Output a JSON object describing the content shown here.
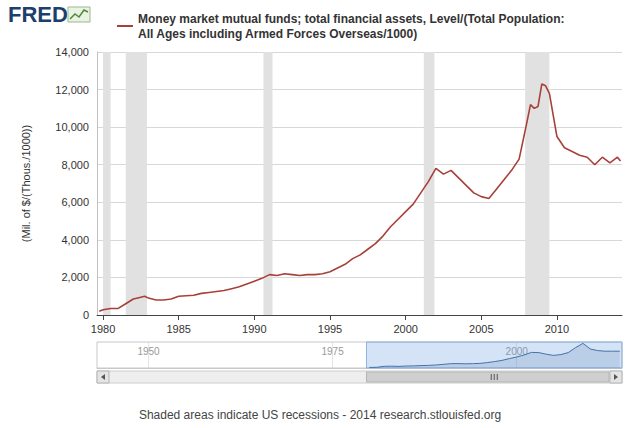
{
  "logo": "FRED",
  "note": "Shaded areas indicate US recessions - 2014 research.stlouisfed.org",
  "chart_data": [
    {
      "type": "line",
      "ylabel": "(Mil. of $/(Thous./1000))",
      "x": [
        1979.75,
        1980,
        1980.5,
        1981,
        1981.5,
        1982,
        1982.5,
        1982.75,
        1983,
        1983.5,
        1984,
        1984.5,
        1985,
        1986,
        1986.5,
        1987,
        1987.5,
        1988,
        1988.5,
        1989,
        1989.5,
        1990,
        1990.5,
        1991,
        1991.5,
        1992,
        1992.5,
        1993,
        1993.5,
        1994,
        1994.5,
        1995,
        1995.5,
        1996,
        1996.5,
        1997,
        1997.5,
        1998,
        1998.5,
        1999,
        1999.5,
        2000,
        2000.5,
        2001,
        2001.5,
        2002,
        2002.5,
        2003,
        2003.5,
        2004,
        2004.5,
        2005,
        2005.5,
        2006,
        2006.5,
        2007,
        2007.5,
        2008,
        2008.25,
        2008.5,
        2008.75,
        2009,
        2009.25,
        2009.5,
        2010,
        2010.5,
        2011,
        2011.5,
        2012,
        2012.5,
        2013,
        2013.5,
        2014,
        2014.2
      ],
      "series": [
        {
          "name": "Money market mutual funds; total financial assets, Level/(Total Population:\nAll Ages including Armed Forces Overseas/1000)",
          "color": "#a8403a",
          "values": [
            200,
            280,
            350,
            350,
            600,
            850,
            950,
            1000,
            900,
            800,
            800,
            850,
            1000,
            1050,
            1150,
            1200,
            1250,
            1300,
            1400,
            1500,
            1650,
            1800,
            1950,
            2150,
            2100,
            2200,
            2150,
            2100,
            2150,
            2150,
            2200,
            2300,
            2500,
            2700,
            3000,
            3200,
            3500,
            3800,
            4200,
            4700,
            5100,
            5500,
            5900,
            6500,
            7100,
            7800,
            7500,
            7700,
            7300,
            6900,
            6500,
            6300,
            6200,
            6700,
            7200,
            7700,
            8300,
            10200,
            11200,
            11000,
            11100,
            12300,
            12200,
            11800,
            9500,
            8900,
            8700,
            8500,
            8400,
            8000,
            8400,
            8100,
            8400,
            8200
          ]
        }
      ],
      "recessions": [
        [
          1980.0,
          1980.5
        ],
        [
          1981.5,
          1982.9
        ],
        [
          1990.6,
          1991.2
        ],
        [
          2001.2,
          2001.9
        ],
        [
          2007.9,
          2009.5
        ]
      ],
      "xlim": [
        1979.6,
        2014.3
      ],
      "xticks": [
        1980,
        1985,
        1990,
        1995,
        2000,
        2005,
        2010
      ],
      "ylim": [
        0,
        14000
      ],
      "yticks": [
        0,
        {
          "value": 2000,
          "label": "2,000"
        },
        {
          "value": 4000,
          "label": "4,000"
        },
        {
          "value": 6000,
          "label": "6,000"
        },
        {
          "value": 8000,
          "label": "8,000"
        },
        {
          "value": 10000,
          "label": "10,000"
        },
        {
          "value": 12000,
          "label": "12,000"
        },
        {
          "value": 14000,
          "label": "14,000"
        }
      ],
      "grid": true,
      "legend": "top-left"
    },
    {
      "type": "line",
      "x": [
        1980,
        1981,
        1982,
        1983,
        1984,
        1985,
        1986,
        1987,
        1988,
        1989,
        1990,
        1991,
        1992,
        1993,
        1994,
        1995,
        1996,
        1997,
        1998,
        1999,
        2000,
        2001,
        2002,
        2003,
        2004,
        2005,
        2006,
        2007,
        2008,
        2009,
        2010,
        2011,
        2012,
        2013,
        2014
      ],
      "values": [
        280,
        350,
        850,
        900,
        800,
        1000,
        1050,
        1200,
        1300,
        1500,
        1800,
        2150,
        2200,
        2100,
        2150,
        2300,
        2700,
        3200,
        3800,
        4700,
        5500,
        6500,
        7800,
        7700,
        6900,
        6300,
        6700,
        7700,
        10200,
        12300,
        9500,
        8700,
        8400,
        8400,
        8400
      ],
      "color": "#4572a7",
      "xlim": [
        1943,
        2014.3
      ],
      "xticks": [
        1950,
        1975,
        2000
      ],
      "ylim": [
        0,
        13000
      ],
      "tick_labels": "x"
    }
  ]
}
